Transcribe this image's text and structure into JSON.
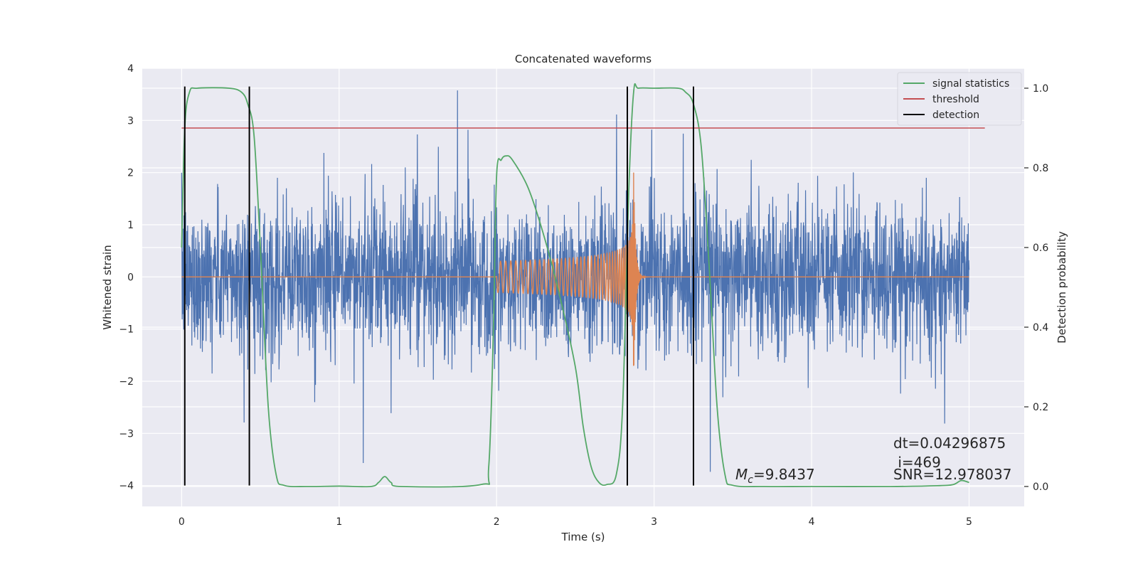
{
  "chart_data": {
    "type": "line",
    "title": "Concatenated waveforms",
    "xlabel": "Time (s)",
    "ylabel": "Whitened strain",
    "ylabel_right": "Detection probability",
    "xlim": [
      -0.25,
      5.35
    ],
    "ylim": [
      -4.4,
      4.0
    ],
    "ylim_right": [
      -0.05,
      1.05
    ],
    "x_ticks": [
      0,
      1,
      2,
      3,
      4,
      5
    ],
    "y_ticks": [
      -4,
      -3,
      -2,
      -1,
      0,
      1,
      2,
      3,
      4
    ],
    "y_tick_labels": [
      "−4",
      "−3",
      "−2",
      "−1",
      "0",
      "1",
      "2",
      "3",
      "4"
    ],
    "y_ticks_right": [
      0.0,
      0.2,
      0.4,
      0.6,
      0.8,
      1.0
    ],
    "y_tick_labels_right": [
      "0.0",
      "0.2",
      "0.4",
      "0.6",
      "0.8",
      "1.0"
    ],
    "grid": true,
    "legend_position": "top-right",
    "legend": [
      {
        "label": "signal statistics",
        "color": "#55a868"
      },
      {
        "label": "threshold",
        "color": "#c44e52"
      },
      {
        "label": "detection",
        "color": "#000000"
      }
    ],
    "noise_series": {
      "color": "#4c72b0",
      "x_start": 0.0,
      "x_end": 5.0,
      "typical_range": [
        -2.6,
        2.6
      ],
      "extreme_range": [
        -4.0,
        3.65
      ]
    },
    "chirp_series": {
      "color": "#dd8452",
      "x_start": 0.0,
      "x_end": 5.0,
      "chirp_start": 2.0,
      "merger_time": 2.87,
      "amplitude_start": 0.3,
      "amplitude_peak": 2.0
    },
    "signal_statistics": {
      "color": "#55a868",
      "x": [
        0.0,
        0.02,
        0.05,
        0.1,
        0.3,
        0.38,
        0.42,
        0.46,
        0.5,
        0.55,
        0.6,
        0.65,
        0.8,
        1.0,
        1.2,
        1.25,
        1.29,
        1.33,
        1.4,
        1.9,
        1.95,
        1.98,
        2.0,
        2.03,
        2.06,
        2.1,
        2.2,
        2.3,
        2.4,
        2.5,
        2.55,
        2.6,
        2.65,
        2.7,
        2.76,
        2.8,
        2.84,
        2.87,
        2.9,
        3.0,
        3.15,
        3.2,
        3.25,
        3.3,
        3.35,
        3.4,
        3.45,
        3.5,
        3.7,
        4.0,
        4.5,
        4.8,
        4.9,
        4.95,
        5.0
      ],
      "values": [
        0.6,
        0.9,
        0.99,
        1.0,
        1.0,
        0.99,
        0.96,
        0.88,
        0.6,
        0.2,
        0.03,
        0.003,
        0.0,
        0.001,
        0.0,
        0.01,
        0.025,
        0.01,
        0.0,
        0.005,
        0.05,
        0.4,
        0.78,
        0.82,
        0.83,
        0.82,
        0.75,
        0.63,
        0.48,
        0.3,
        0.15,
        0.05,
        0.01,
        0.005,
        0.03,
        0.2,
        0.75,
        0.99,
        1.0,
        1.0,
        1.0,
        0.99,
        0.96,
        0.85,
        0.55,
        0.2,
        0.03,
        0.003,
        0.0,
        0.0,
        0.0,
        0.002,
        0.005,
        0.015,
        0.01
      ]
    },
    "threshold": {
      "x": [
        0.0,
        5.1
      ],
      "value": 0.9,
      "color": "#c44e52"
    },
    "detections": {
      "x": [
        0.02,
        0.43,
        2.83,
        3.25
      ],
      "color": "#000000",
      "y_range": [
        -4.0,
        3.65
      ]
    },
    "annotations": {
      "mc_symbol": "M",
      "mc_subscript": "c",
      "mc_value": "=9.8437",
      "dt": "dt=0.04296875",
      "i": " i=469",
      "snr": "SNR=12.978037"
    }
  }
}
